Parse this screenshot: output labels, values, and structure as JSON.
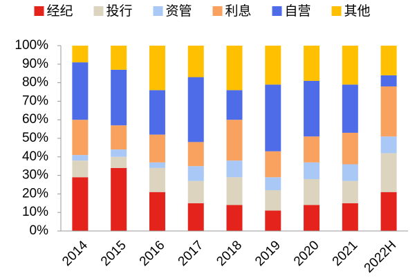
{
  "chart_data": {
    "type": "stacked_bar",
    "categories": [
      "2014",
      "2015",
      "2016",
      "2017",
      "2018",
      "2019",
      "2020",
      "2021",
      "2022H"
    ],
    "series": [
      {
        "name": "经纪",
        "color": "#e3231c",
        "values": [
          29,
          34,
          21,
          15,
          14,
          11,
          14,
          15,
          21
        ]
      },
      {
        "name": "投行",
        "color": "#ddd4c0",
        "values": [
          9,
          6,
          13,
          12,
          15,
          11,
          14,
          12,
          21
        ]
      },
      {
        "name": "资管",
        "color": "#a9c8f5",
        "values": [
          3,
          4,
          3,
          8,
          9,
          7,
          9,
          9,
          9
        ]
      },
      {
        "name": "利息",
        "color": "#f9a15f",
        "values": [
          19,
          13,
          15,
          13,
          22,
          14,
          14,
          17,
          27
        ]
      },
      {
        "name": "自营",
        "color": "#4f6ce8",
        "values": [
          31,
          30,
          24,
          35,
          16,
          36,
          30,
          26,
          6
        ]
      },
      {
        "name": "其他",
        "color": "#fec000",
        "values": [
          9,
          13,
          24,
          17,
          24,
          21,
          19,
          21,
          16
        ]
      }
    ],
    "ylim": [
      0,
      100
    ],
    "yticks": [
      {
        "value": 0,
        "label": "0%"
      },
      {
        "value": 10,
        "label": "10%"
      },
      {
        "value": 20,
        "label": "20%"
      },
      {
        "value": 30,
        "label": "30%"
      },
      {
        "value": 40,
        "label": "40%"
      },
      {
        "value": 50,
        "label": "50%"
      },
      {
        "value": 60,
        "label": "60%"
      },
      {
        "value": 70,
        "label": "70%"
      },
      {
        "value": 80,
        "label": "80%"
      },
      {
        "value": 90,
        "label": "90%"
      },
      {
        "value": 100,
        "label": "100%"
      }
    ],
    "legend": "top"
  }
}
